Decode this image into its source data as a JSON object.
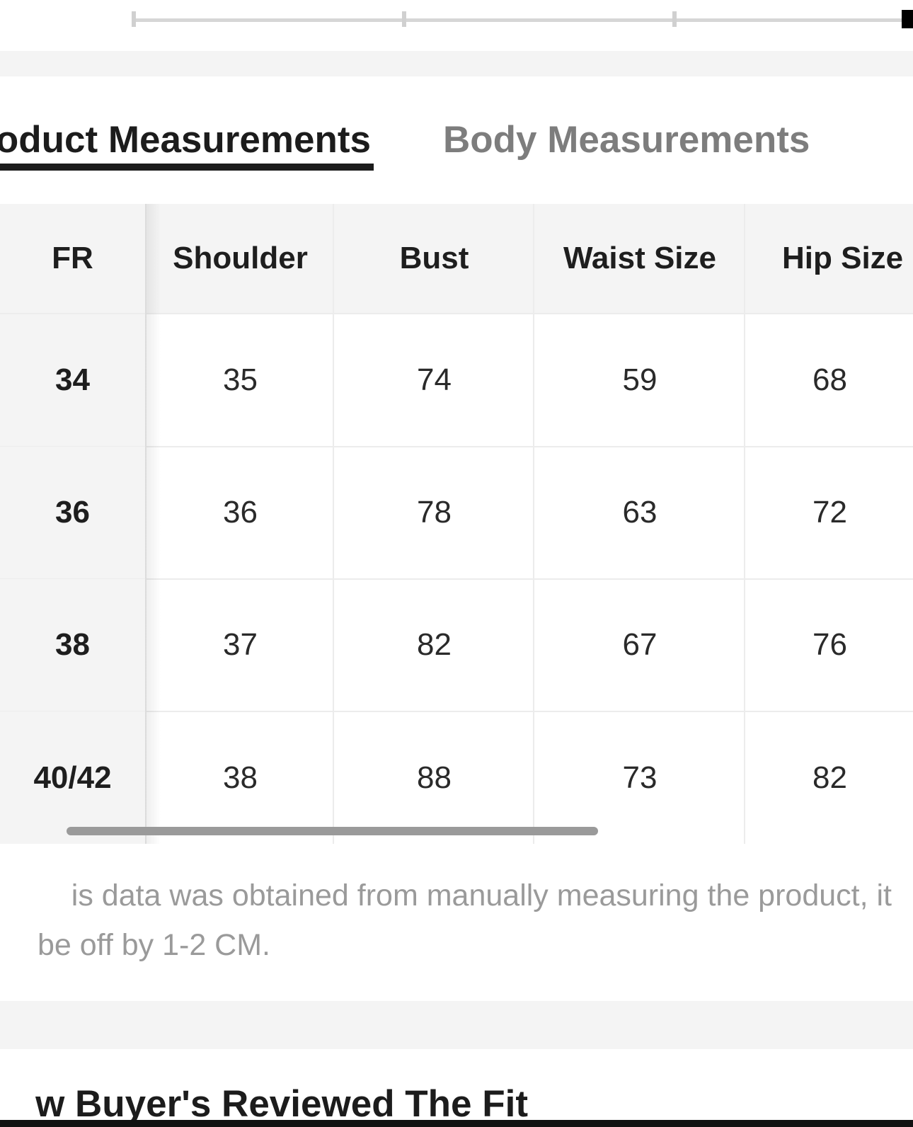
{
  "tabs": {
    "product_label": "oduct Measurements",
    "body_label": "Body Measurements"
  },
  "table": {
    "headers": [
      "FR",
      "Shoulder",
      "Bust",
      "Waist Size",
      "Hip Size"
    ],
    "rows": [
      [
        "34",
        "35",
        "74",
        "59",
        "68"
      ],
      [
        "36",
        "36",
        "78",
        "63",
        "72"
      ],
      [
        "38",
        "37",
        "82",
        "67",
        "76"
      ],
      [
        "40/42",
        "38",
        "88",
        "73",
        "82"
      ]
    ]
  },
  "note": {
    "line1": "is data was obtained from manually measuring the product, it",
    "line2": "be off by 1-2 CM."
  },
  "reviews": {
    "heading": "w Buyer's Reviewed The Fit"
  },
  "colors": {
    "active_tab": "#1c1c1c",
    "inactive_tab": "#7d7d7d",
    "band_gray": "#f4f4f4",
    "note_text": "#9a9a9a"
  }
}
